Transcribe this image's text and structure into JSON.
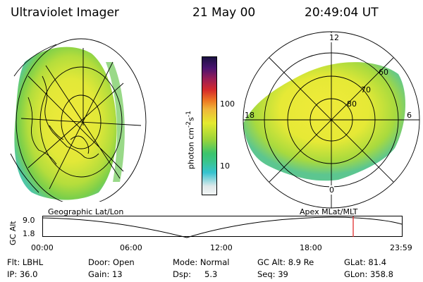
{
  "header": {
    "title": "Ultraviolet Imager",
    "date": "21 May 00",
    "time": "20:49:04 UT"
  },
  "colorbar": {
    "label": "photon cm⁻²s⁻¹",
    "label_base": "photon cm",
    "label_sup1": "-2",
    "label_s": "s",
    "label_sup2": "-1",
    "ticks": [
      {
        "label": "100",
        "value": 100
      },
      {
        "label": "10",
        "value": 10
      }
    ],
    "colors": [
      "#dfe9ea",
      "#36c3cf",
      "#3bc46c",
      "#9ad43a",
      "#e4ea2f",
      "#f0b63a",
      "#ee7b23",
      "#d62b2b",
      "#9a1d55",
      "#4a1370",
      "#1a1242"
    ]
  },
  "left_panel": {
    "label": "Geographic Lat/Lon"
  },
  "right_panel": {
    "label": "Apex MLat/MLT",
    "mlt_labels": {
      "top": "12",
      "bottom": "0",
      "left": "18",
      "right": "6"
    },
    "lat_labels": [
      "60",
      "70",
      "80"
    ]
  },
  "timeline": {
    "ylabel": "GC Alt",
    "ymax_label": "9.0",
    "ymin_label": "1.8",
    "time_ticks": [
      "00:00",
      "06:00",
      "12:00",
      "18:00",
      "23:59"
    ],
    "cursor_color": "#e03030"
  },
  "info": {
    "flt": "Flt: LBHL",
    "ip": "IP: 36.0",
    "door": "Door: Open",
    "gain": "Gain: 13",
    "mode": "Mode: Normal",
    "dsp_label": "Dsp:",
    "dsp_value": "5.3",
    "gcalt": "GC Alt: 8.9 Re",
    "seq": "Seq: 39",
    "glat": "GLat: 81.4",
    "glon": "GLon: 358.8"
  }
}
